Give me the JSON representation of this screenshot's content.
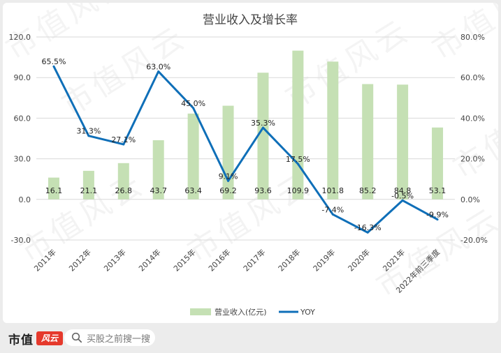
{
  "chart_data": {
    "type": "bar+line",
    "title": "营业收入及增长率",
    "categories": [
      "2011年",
      "2012年",
      "2013年",
      "2014年",
      "2015年",
      "2016年",
      "2017年",
      "2018年",
      "2019年",
      "2020年",
      "2021年",
      "2022年前三季度"
    ],
    "series": [
      {
        "name": "营业收入(亿元)",
        "type": "bar",
        "axis": "left",
        "color": "#c5e0b4",
        "values": [
          16.1,
          21.1,
          26.8,
          43.7,
          63.4,
          69.2,
          93.6,
          109.9,
          101.8,
          85.2,
          84.8,
          53.1
        ],
        "labels": [
          "16.1",
          "21.1",
          "26.8",
          "43.7",
          "63.4",
          "69.2",
          "93.6",
          "109.9",
          "101.8",
          "85.2",
          "84.8",
          "53.1"
        ]
      },
      {
        "name": "YOY",
        "type": "line",
        "axis": "right",
        "color": "#0f6fb8",
        "values": [
          65.5,
          31.3,
          27.1,
          63.0,
          45.0,
          9.1,
          35.3,
          17.5,
          -7.4,
          -16.3,
          -0.5,
          -9.9
        ],
        "labels": [
          "65.5%",
          "31.3%",
          "27.1%",
          "63.0%",
          "45.0%",
          "9.1%",
          "35.3%",
          "17.5%",
          "-7.4%",
          "-16.3%",
          "-0.5%",
          "-9.9%"
        ]
      }
    ],
    "left_axis": {
      "min": -30,
      "max": 120,
      "ticks": [
        -30,
        0,
        30,
        60,
        90,
        120
      ],
      "tick_labels": [
        "-30.0",
        "0.0",
        "30.0",
        "60.0",
        "90.0",
        "120.0"
      ]
    },
    "right_axis": {
      "min": -20,
      "max": 80,
      "ticks": [
        -20,
        0,
        20,
        40,
        60,
        80
      ],
      "tick_labels": [
        "-20.0%",
        "0.0%",
        "20.0%",
        "40.0%",
        "60.0%",
        "80.0%"
      ]
    },
    "grid": true,
    "legend_position": "bottom"
  },
  "watermark": {
    "text": "市值风云"
  },
  "footer": {
    "logo_text": "市值",
    "logo_seal": "风云",
    "search_placeholder": "买股之前搜一搜"
  }
}
